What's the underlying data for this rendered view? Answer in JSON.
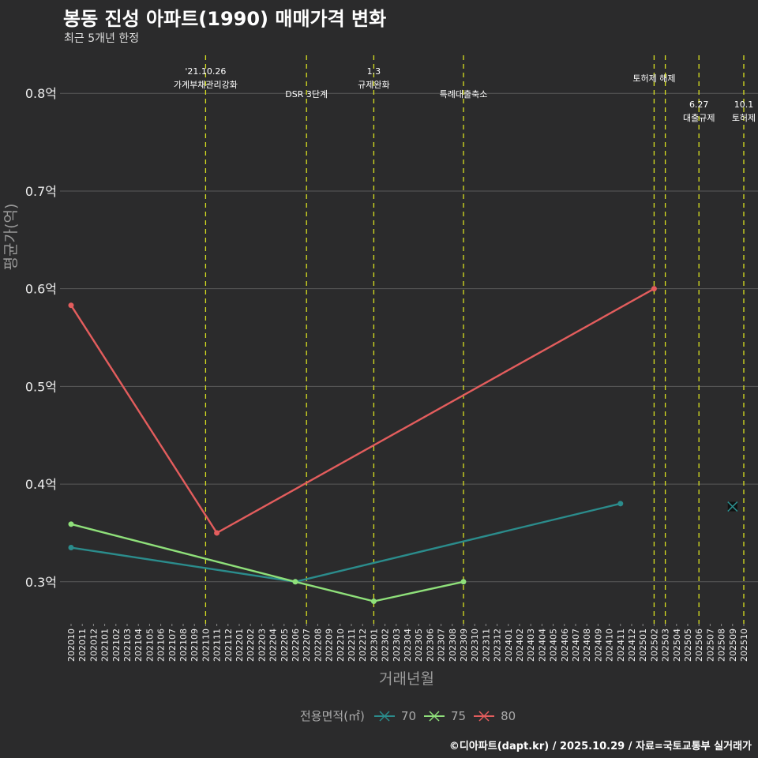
{
  "title": "봉동 진성 아파트(1990) 매매가격 변화",
  "subtitle": "최근 5개년 한정",
  "footer": "©디아파트(dapt.kr) / 2025.10.29 / 자료=국토교통부 실거래가",
  "chart_data": {
    "type": "line",
    "title": "봉동 진성 아파트(1990) 매매가격 변화",
    "xlabel": "거래년월",
    "ylabel": "평균가(억)",
    "ylim": [
      0.257,
      0.839
    ],
    "yticks": [
      0.3,
      0.4,
      0.5,
      0.6,
      0.7,
      0.8
    ],
    "ytick_labels": [
      "0.3억",
      "0.4억",
      "0.5억",
      "0.6억",
      "0.7억",
      "0.8억"
    ],
    "x_start": "202010",
    "x_end": "202510",
    "grid": true,
    "legend_title": "전용면적(㎡)",
    "legend_position": "bottom",
    "series": [
      {
        "name": "70",
        "color": "#2b8c8c",
        "points": [
          [
            "202010",
            0.335
          ],
          [
            "202206",
            0.3
          ],
          [
            "202411",
            0.38
          ]
        ],
        "single_points": [
          [
            "202509",
            0.377
          ]
        ]
      },
      {
        "name": "75",
        "color": "#8fe07a",
        "points": [
          [
            "202010",
            0.359
          ],
          [
            "202206",
            0.3
          ],
          [
            "202301",
            0.28
          ],
          [
            "202309",
            0.3
          ]
        ],
        "single_points": []
      },
      {
        "name": "80",
        "color": "#e35d5d",
        "points": [
          [
            "202010",
            0.583
          ],
          [
            "202111",
            0.35
          ],
          [
            "202502",
            0.6
          ]
        ],
        "single_points": []
      }
    ],
    "events": [
      {
        "month": "202110",
        "lines": [
          "'21.10.26",
          "가계부채관리강화"
        ],
        "row": 0
      },
      {
        "month": "202207",
        "lines": [
          "DSR 3단계"
        ],
        "row": 2
      },
      {
        "month": "202301",
        "lines": [
          "1.3",
          "규제완화"
        ],
        "row": 0
      },
      {
        "month": "202309",
        "lines": [
          "특례대출축소"
        ],
        "row": 2
      },
      {
        "month": "202502",
        "lines": [
          "토허제 해제"
        ],
        "row": 1
      },
      {
        "month": "202503",
        "lines": [],
        "row": 1
      },
      {
        "month": "202506",
        "lines": [
          "6.27",
          "대출규제"
        ],
        "row": 3
      },
      {
        "month": "202510",
        "lines": [
          "10.1",
          "토허제"
        ],
        "row": 3
      }
    ]
  }
}
